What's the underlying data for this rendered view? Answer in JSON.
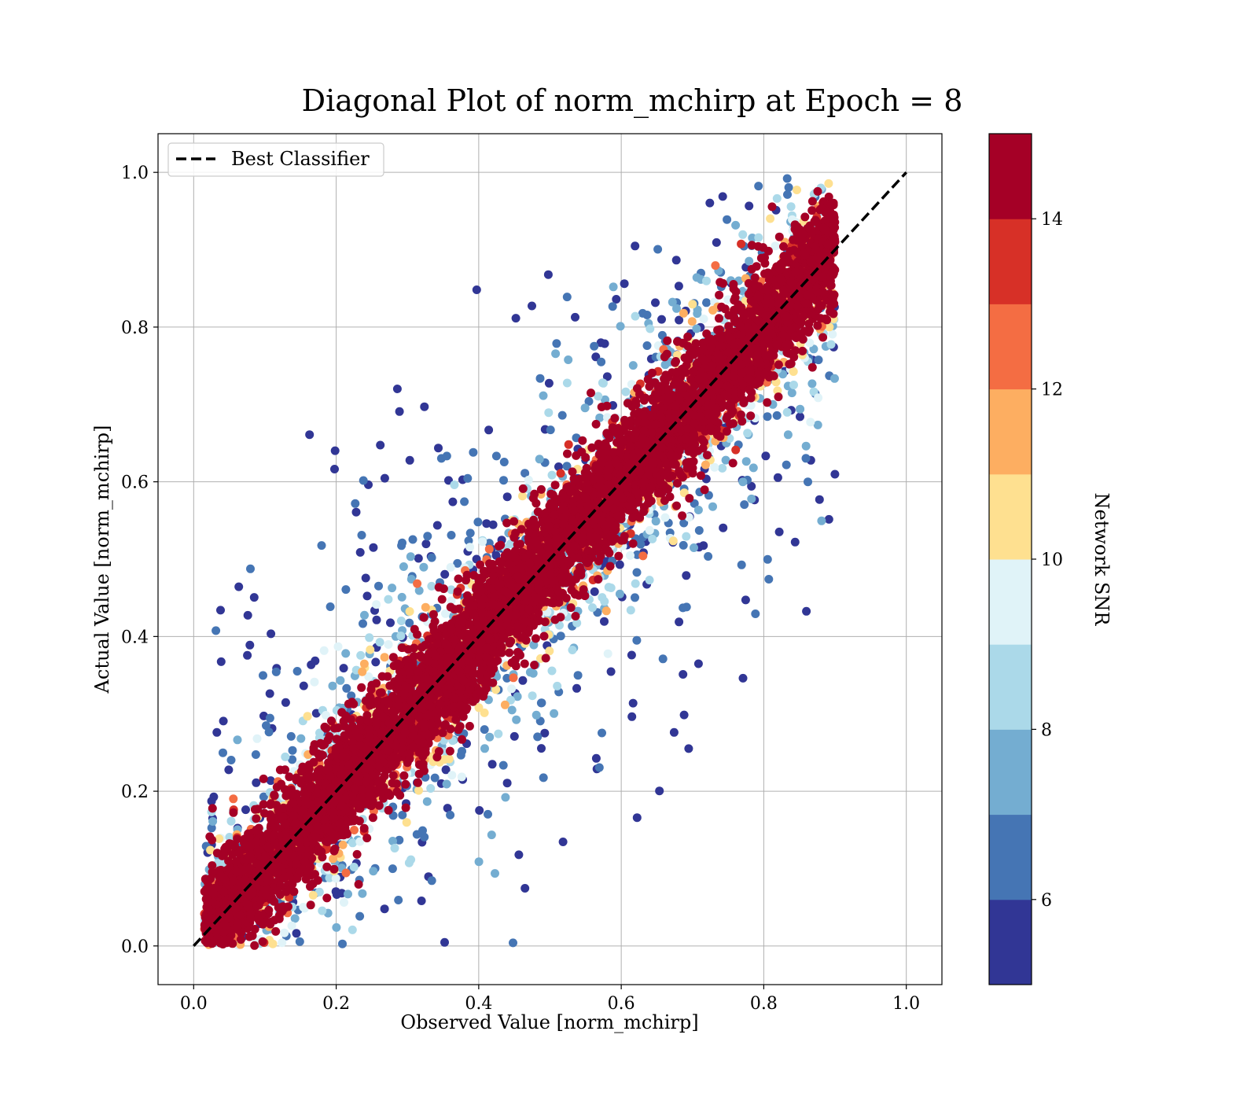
{
  "chart_data": {
    "type": "scatter",
    "title": "Diagonal Plot of norm_mchirp at Epoch = 8",
    "xlabel": "Observed Value [norm_mchirp]",
    "ylabel": "Actual Value [norm_mchirp]",
    "xlim": [
      -0.05,
      1.05
    ],
    "ylim": [
      -0.05,
      1.05
    ],
    "x_ticks": [
      "0.0",
      "0.2",
      "0.4",
      "0.6",
      "0.8",
      "1.0"
    ],
    "y_ticks": [
      "0.0",
      "0.2",
      "0.4",
      "0.6",
      "0.8",
      "1.0"
    ],
    "grid": true,
    "legend": {
      "placement": "upper-left",
      "entries": [
        {
          "name": "Best Classifier",
          "style": "dashed",
          "color": "#000000"
        }
      ]
    },
    "reference_line": {
      "name": "Best Classifier",
      "x": [
        0.0,
        1.0
      ],
      "y": [
        0.0,
        1.0
      ]
    },
    "colorbar": {
      "label": "Network SNR",
      "range": [
        5,
        15
      ],
      "ticks": [
        "6",
        "8",
        "10",
        "12",
        "14"
      ],
      "bands": [
        "#313695",
        "#4575b4",
        "#74add1",
        "#abd9e9",
        "#e0f3f8",
        "#fee090",
        "#fdae61",
        "#f46d43",
        "#d73027",
        "#a50026"
      ]
    },
    "points_description_values": {
      "x_range": [
        0.02,
        0.9
      ],
      "y_range": [
        0.0,
        1.0
      ],
      "marker_color_by": "Network SNR"
    }
  }
}
